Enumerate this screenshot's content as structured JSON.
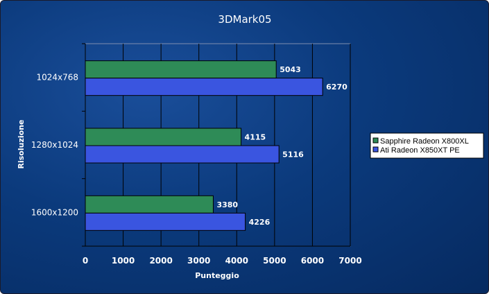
{
  "chart_data": {
    "type": "bar",
    "orientation": "horizontal",
    "title": "3DMark05",
    "xlabel": "Punteggio",
    "ylabel": "Risoluzione",
    "xlim": [
      0,
      7000
    ],
    "xticks": [
      0,
      1000,
      2000,
      3000,
      4000,
      5000,
      6000,
      7000
    ],
    "categories": [
      "1024x768",
      "1280x1024",
      "1600x1200"
    ],
    "series": [
      {
        "name": "Sapphire Radeon X800XL",
        "values": [
          5043,
          4115,
          3380
        ],
        "color": "#2e8b57"
      },
      {
        "name": "Ati Radeon X850XT PE",
        "values": [
          6270,
          5116,
          4226
        ],
        "color": "#3a55e0"
      }
    ],
    "grid": true,
    "legend_position": "right"
  }
}
